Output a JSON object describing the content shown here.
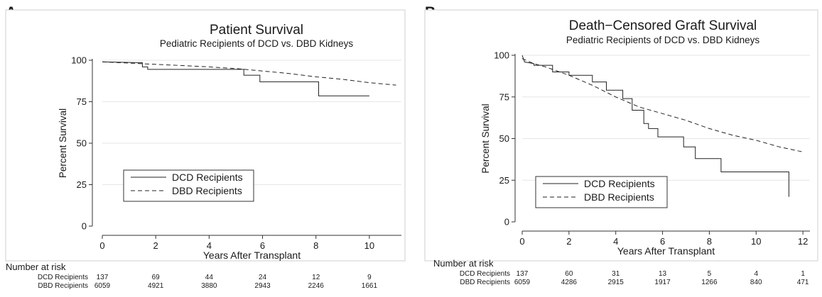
{
  "chart_data": [
    {
      "panel": "A",
      "type": "line",
      "title": "Patient Survival",
      "subtitle": "Pediatric Recipients of DCD vs. DBD Kidneys",
      "xlabel": "Years After Transplant",
      "ylabel": "Percent Survival",
      "xlim": [
        0,
        11.2
      ],
      "ylim": [
        0,
        100
      ],
      "xticks": [
        "0",
        "2",
        "4",
        "6",
        "8",
        "10"
      ],
      "yticks": [
        "0",
        "25",
        "50",
        "75",
        "100"
      ],
      "grid": true,
      "legend_position": "bottom-left",
      "series": [
        {
          "name": "DCD Recipients",
          "style": "solid",
          "x": [
            0,
            1.5,
            1.5,
            1.7,
            1.7,
            5.3,
            5.3,
            5.9,
            5.9,
            8.1,
            8.1,
            10
          ],
          "y": [
            99,
            98.5,
            96,
            96,
            94.5,
            94.5,
            91,
            91,
            87,
            87,
            78.5,
            78.5
          ]
        },
        {
          "name": "DBD Recipients",
          "style": "dashed",
          "x": [
            0,
            1,
            2,
            3,
            4,
            5,
            6,
            7,
            8,
            9,
            10,
            11
          ],
          "y": [
            99,
            98.3,
            97.5,
            96.8,
            96,
            95,
            93.5,
            92,
            90,
            88.5,
            86.5,
            85
          ]
        }
      ],
      "risk_table": {
        "header": "Number at risk",
        "rows": [
          {
            "label": "DCD Recipients",
            "values": [
              "137",
              "69",
              "44",
              "24",
              "12",
              "9"
            ]
          },
          {
            "label": "DBD Recipients",
            "values": [
              "6059",
              "4921",
              "3880",
              "2943",
              "2246",
              "1661"
            ]
          }
        ]
      }
    },
    {
      "panel": "B",
      "type": "line",
      "title": "Death−Censored Graft Survival",
      "subtitle": "Pediatric Recipients of DCD vs. DBD Kidneys",
      "xlabel": "Years After Transplant",
      "ylabel": "Percent Survival",
      "xlim": [
        0,
        12.3
      ],
      "ylim": [
        0,
        100
      ],
      "xticks": [
        "0",
        "2",
        "4",
        "6",
        "8",
        "10",
        "12"
      ],
      "yticks": [
        "0",
        "25",
        "50",
        "75",
        "100"
      ],
      "grid": true,
      "legend_position": "bottom-left",
      "series": [
        {
          "name": "DCD Recipients",
          "style": "solid",
          "x": [
            0,
            0.1,
            0.5,
            0.5,
            1.3,
            1.3,
            2.0,
            2.0,
            3.0,
            3.0,
            3.6,
            3.6,
            4.3,
            4.3,
            4.7,
            4.7,
            5.2,
            5.2,
            5.4,
            5.4,
            5.8,
            5.8,
            6.9,
            6.9,
            7.4,
            7.4,
            8.5,
            8.5,
            11.4,
            11.4
          ],
          "y": [
            100,
            96,
            95,
            94,
            94,
            90,
            90,
            88,
            88,
            84,
            84,
            79,
            79,
            74,
            74,
            67,
            67,
            59,
            59,
            56,
            56,
            51,
            51,
            45,
            45,
            38,
            38,
            30,
            30,
            15
          ]
        },
        {
          "name": "DBD Recipients",
          "style": "dashed",
          "x": [
            0,
            0.5,
            1,
            2,
            3,
            4,
            5,
            6,
            7,
            8,
            9,
            10,
            11,
            12
          ],
          "y": [
            98,
            95,
            93,
            88,
            82,
            75,
            69,
            65,
            61,
            56,
            52,
            49,
            45,
            42
          ]
        }
      ],
      "risk_table": {
        "header": "Number at risk",
        "rows": [
          {
            "label": "DCD Recipients",
            "values": [
              "137",
              "60",
              "31",
              "13",
              "5",
              "4",
              "1"
            ]
          },
          {
            "label": "DBD Recipients",
            "values": [
              "6059",
              "4286",
              "2915",
              "1917",
              "1266",
              "840",
              "471"
            ]
          }
        ]
      }
    }
  ]
}
